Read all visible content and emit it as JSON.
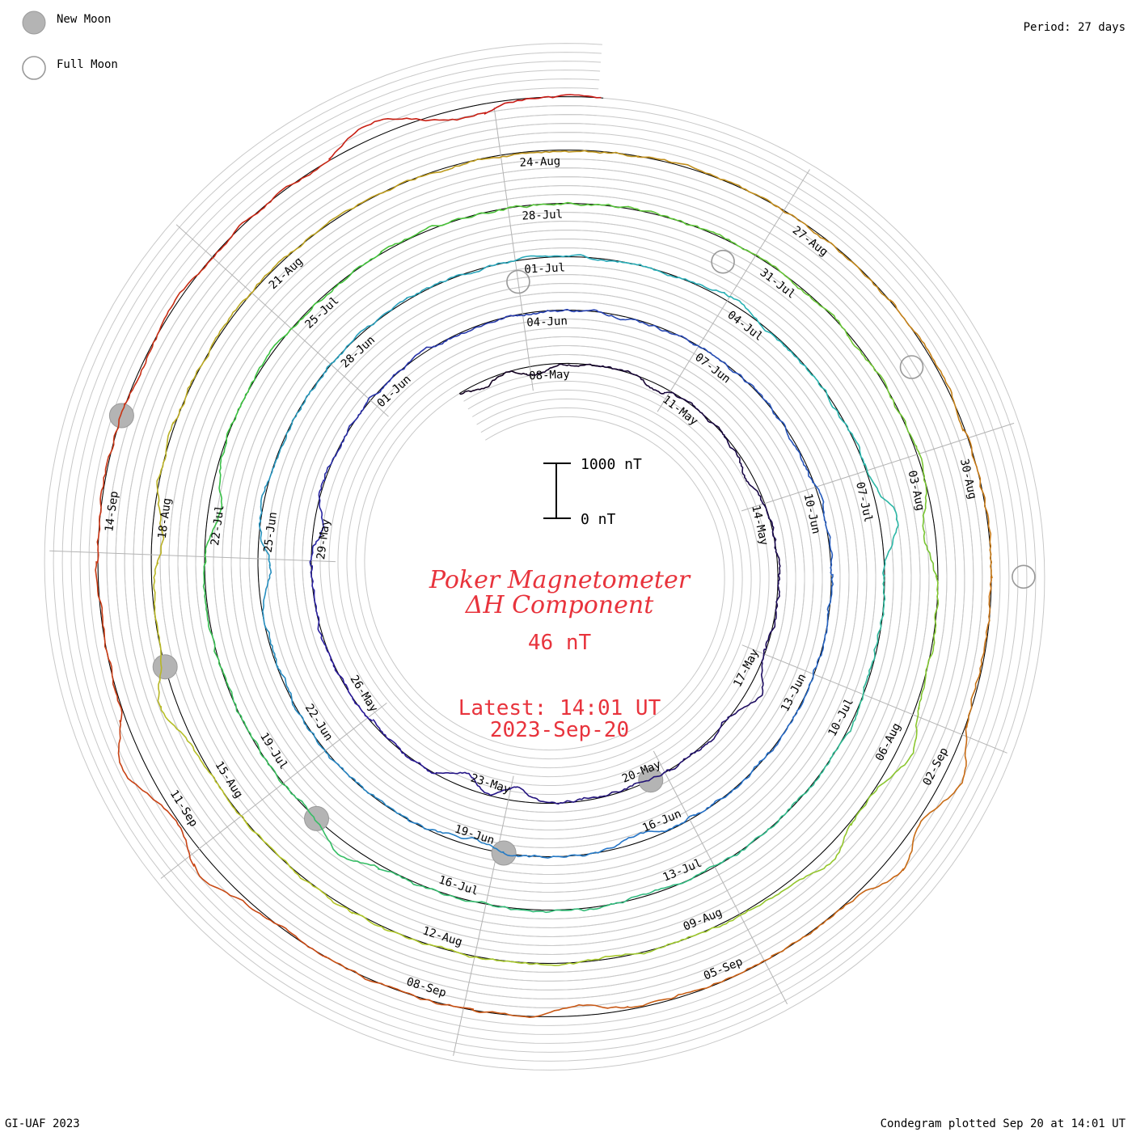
{
  "header": {
    "period_label": "Period: 27 days"
  },
  "legend": {
    "new_moon_label": "New Moon",
    "full_moon_label": "Full Moon",
    "moon_fill": "#b4b4b4",
    "moon_stroke": "#999999"
  },
  "footer": {
    "credit": "GI-UAF 2023",
    "plotted": "Condegram plotted Sep 20 at 14:01 UT"
  },
  "center": {
    "title_line1": "Poker Magnetometer",
    "title_line2": "ΔH Component",
    "current_value": "46 nT",
    "latest_line1": "Latest: 14:01 UT",
    "latest_line2": "2023-Sep-20",
    "text_color": "#e8333c"
  },
  "scale_bar": {
    "top_label": "1000 nT",
    "bottom_label": "0 nT"
  },
  "chart_data": {
    "type": "condegram (spiral line plot)",
    "period_days": 27,
    "start_date": "2023-May-06",
    "end_date": "2023-Sep-20",
    "quantity": "ΔH (nT)",
    "scale_reference_nT": [
      0,
      1000
    ],
    "date_labels": [
      {
        "day": 2,
        "label": "08-May"
      },
      {
        "day": 5,
        "label": "11-May"
      },
      {
        "day": 8,
        "label": "14-May"
      },
      {
        "day": 11,
        "label": "17-May"
      },
      {
        "day": 14,
        "label": "20-May"
      },
      {
        "day": 17,
        "label": "23-May"
      },
      {
        "day": 20,
        "label": "26-May"
      },
      {
        "day": 23,
        "label": "29-May"
      },
      {
        "day": 26,
        "label": "01-Jun"
      },
      {
        "day": 29,
        "label": "04-Jun"
      },
      {
        "day": 32,
        "label": "07-Jun"
      },
      {
        "day": 35,
        "label": "10-Jun"
      },
      {
        "day": 38,
        "label": "13-Jun"
      },
      {
        "day": 41,
        "label": "16-Jun"
      },
      {
        "day": 44,
        "label": "19-Jun"
      },
      {
        "day": 47,
        "label": "22-Jun"
      },
      {
        "day": 50,
        "label": "25-Jun"
      },
      {
        "day": 53,
        "label": "28-Jun"
      },
      {
        "day": 56,
        "label": "01-Jul"
      },
      {
        "day": 59,
        "label": "04-Jul"
      },
      {
        "day": 62,
        "label": "07-Jul"
      },
      {
        "day": 65,
        "label": "10-Jul"
      },
      {
        "day": 68,
        "label": "13-Jul"
      },
      {
        "day": 71,
        "label": "16-Jul"
      },
      {
        "day": 74,
        "label": "19-Jul"
      },
      {
        "day": 77,
        "label": "22-Jul"
      },
      {
        "day": 80,
        "label": "25-Jul"
      },
      {
        "day": 83,
        "label": "28-Jul"
      },
      {
        "day": 86,
        "label": "31-Jul"
      },
      {
        "day": 89,
        "label": "03-Aug"
      },
      {
        "day": 92,
        "label": "06-Aug"
      },
      {
        "day": 95,
        "label": "09-Aug"
      },
      {
        "day": 98,
        "label": "12-Aug"
      },
      {
        "day": 101,
        "label": "15-Aug"
      },
      {
        "day": 104,
        "label": "18-Aug"
      },
      {
        "day": 107,
        "label": "21-Aug"
      },
      {
        "day": 110,
        "label": "24-Aug"
      },
      {
        "day": 113,
        "label": "27-Aug"
      },
      {
        "day": 116,
        "label": "30-Aug"
      },
      {
        "day": 119,
        "label": "02-Sep"
      },
      {
        "day": 122,
        "label": "05-Sep"
      },
      {
        "day": 125,
        "label": "08-Sep"
      },
      {
        "day": 128,
        "label": "11-Sep"
      },
      {
        "day": 131,
        "label": "14-Sep"
      }
    ],
    "new_moon_days": [
      13.9,
      43.5,
      73.0,
      102.4,
      131.9
    ],
    "full_moon_days": [
      28.6,
      58.3,
      87.7,
      117.0
    ],
    "disturbances": [
      {
        "day": 0.5,
        "amp_nT": -150
      },
      {
        "day": 1.7,
        "amp_nT": -180
      },
      {
        "day": 4.3,
        "amp_nT": -120
      },
      {
        "day": 7.0,
        "amp_nT": -140
      },
      {
        "day": 11.3,
        "amp_nT": 250
      },
      {
        "day": 16.5,
        "amp_nT": -250
      },
      {
        "day": 17.5,
        "amp_nT": -230
      },
      {
        "day": 23.2,
        "amp_nT": -200
      },
      {
        "day": 41.5,
        "amp_nT": -160
      },
      {
        "day": 44.0,
        "amp_nT": -130
      },
      {
        "day": 49.5,
        "amp_nT": -220
      },
      {
        "day": 58.6,
        "amp_nT": 120
      },
      {
        "day": 62.3,
        "amp_nT": 320
      },
      {
        "day": 72.5,
        "amp_nT": 260
      },
      {
        "day": 77.2,
        "amp_nT": -180
      },
      {
        "day": 89.5,
        "amp_nT": -220
      },
      {
        "day": 92.0,
        "amp_nT": 280
      },
      {
        "day": 93.5,
        "amp_nT": 220
      },
      {
        "day": 102.0,
        "amp_nT": 280
      },
      {
        "day": 103.8,
        "amp_nT": -200
      },
      {
        "day": 119.0,
        "amp_nT": 340
      },
      {
        "day": 120.0,
        "amp_nT": 300
      },
      {
        "day": 123.5,
        "amp_nT": -180
      },
      {
        "day": 127.4,
        "amp_nT": 300
      },
      {
        "day": 128.6,
        "amp_nT": 420
      },
      {
        "day": 135.5,
        "amp_nT": 260
      },
      {
        "day": 136.3,
        "amp_nT": -200
      }
    ],
    "color_stops": [
      "#120020",
      "#2a1a9c",
      "#2470c8",
      "#28b4b4",
      "#3cc23c",
      "#b4c828",
      "#c86e14",
      "#c81414"
    ]
  }
}
